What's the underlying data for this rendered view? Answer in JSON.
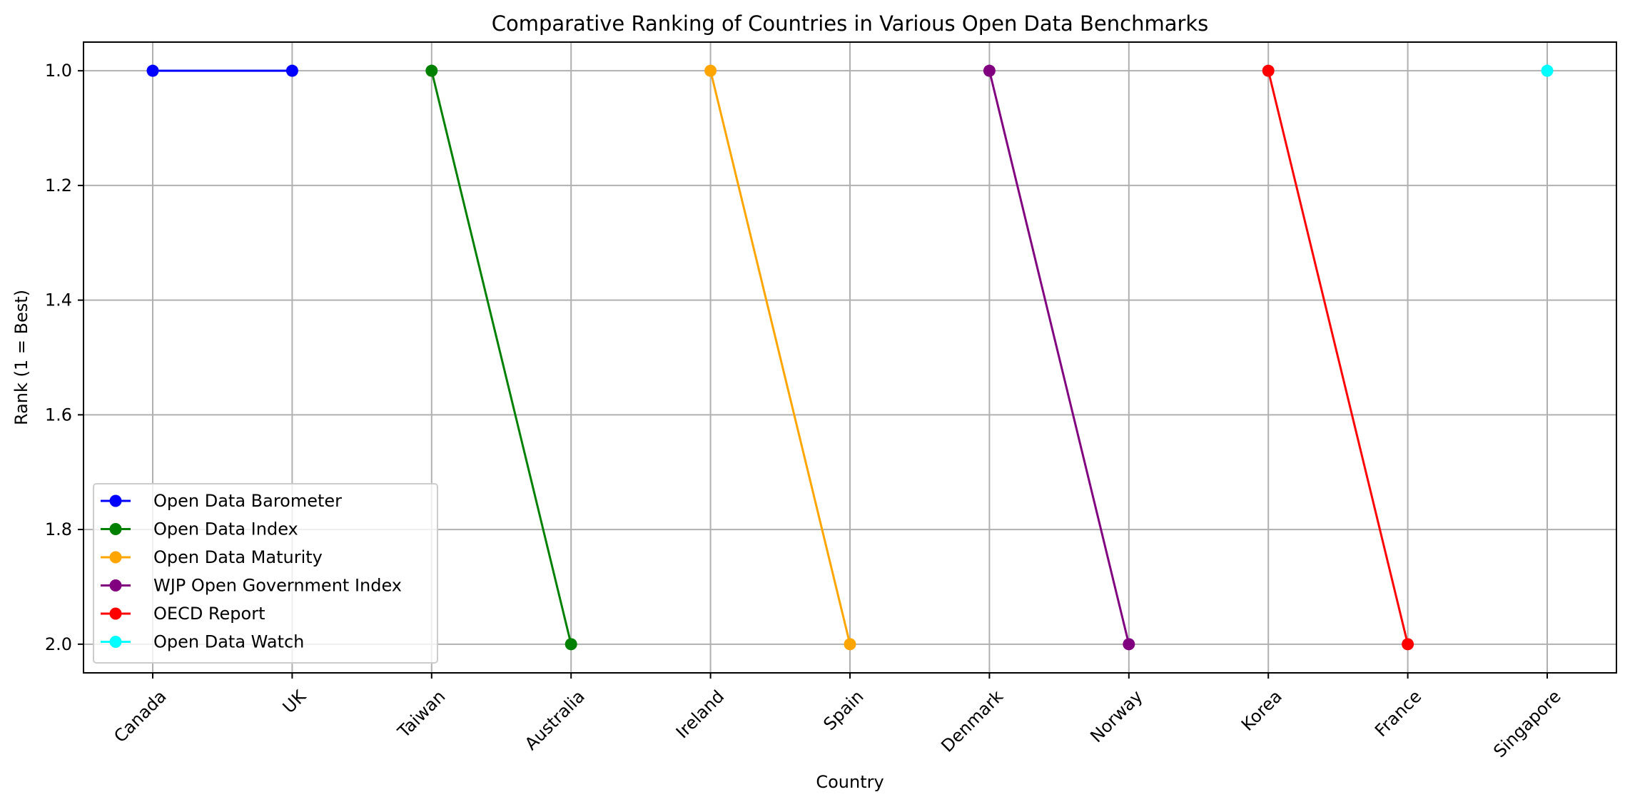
{
  "chart_data": {
    "type": "line",
    "title": "Comparative Ranking of Countries in Various Open Data Benchmarks",
    "xlabel": "Country",
    "ylabel": "Rank (1 = Best)",
    "categories": [
      "Canada",
      "UK",
      "Taiwan",
      "Australia",
      "Ireland",
      "Spain",
      "Denmark",
      "Norway",
      "Korea",
      "France",
      "Singapore"
    ],
    "y_ticks": [
      "1.0",
      "1.2",
      "1.4",
      "1.6",
      "1.8",
      "2.0"
    ],
    "ylim": [
      2.05,
      0.95
    ],
    "y_inverted": true,
    "grid": true,
    "legend_placement": "lower-left",
    "series": [
      {
        "name": "Open Data Barometer",
        "color": "#0000ff",
        "points": [
          {
            "x": "Canada",
            "y": 1
          },
          {
            "x": "UK",
            "y": 1
          }
        ]
      },
      {
        "name": "Open Data Index",
        "color": "#008000",
        "points": [
          {
            "x": "Taiwan",
            "y": 1
          },
          {
            "x": "Australia",
            "y": 2
          }
        ]
      },
      {
        "name": "Open Data Maturity",
        "color": "#ffa500",
        "points": [
          {
            "x": "Ireland",
            "y": 1
          },
          {
            "x": "Spain",
            "y": 2
          }
        ]
      },
      {
        "name": "WJP Open Government Index",
        "color": "#800080",
        "points": [
          {
            "x": "Denmark",
            "y": 1
          },
          {
            "x": "Norway",
            "y": 2
          }
        ]
      },
      {
        "name": "OECD Report",
        "color": "#ff0000",
        "points": [
          {
            "x": "Korea",
            "y": 1
          },
          {
            "x": "France",
            "y": 2
          }
        ]
      },
      {
        "name": "Open Data Watch",
        "color": "#00ffff",
        "points": [
          {
            "x": "Singapore",
            "y": 1
          }
        ]
      }
    ]
  }
}
